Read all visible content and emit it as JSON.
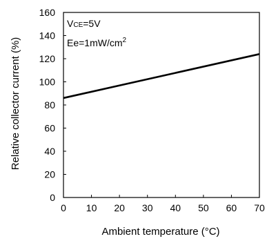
{
  "chart_data": {
    "type": "line",
    "title": "",
    "xlabel": "Ambient temperature (°C)",
    "ylabel": "Relative collector current (%)",
    "xlim": [
      0,
      70
    ],
    "ylim": [
      0,
      160
    ],
    "xticks": [
      0,
      10,
      20,
      30,
      40,
      50,
      60,
      70
    ],
    "yticks": [
      0,
      20,
      40,
      60,
      80,
      100,
      120,
      140,
      160
    ],
    "grid": false,
    "series": [
      {
        "x": [
          0,
          70
        ],
        "y": [
          86,
          124
        ]
      }
    ],
    "annotations": {
      "vce_main": "V",
      "vce_sub": "CE",
      "vce_value": "=5V",
      "ee_text": "Ee=1mW/cm",
      "ee_sup": "2"
    }
  }
}
